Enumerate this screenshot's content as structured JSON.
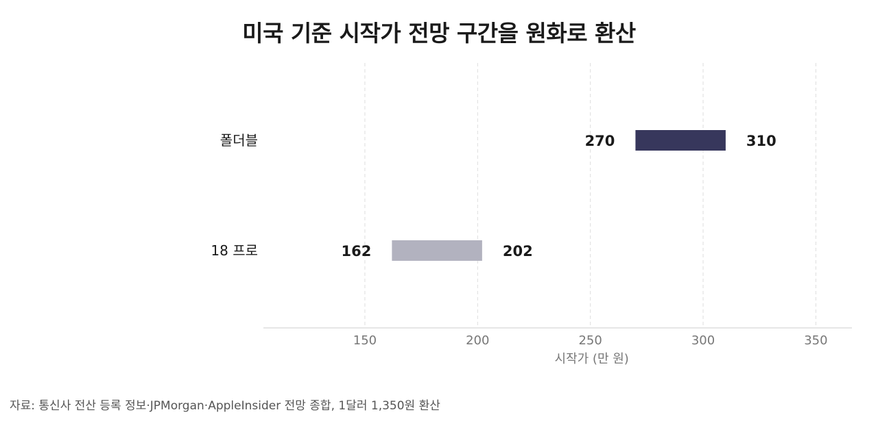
{
  "chart_data": {
    "type": "bar",
    "orientation": "horizontal",
    "subtype": "range",
    "title": "미국 기준 시작가 전망 구간을 원화로 환산",
    "xlabel": "시작가 (만 원)",
    "ylabel": "",
    "xlim": [
      105,
      366
    ],
    "xticks": [
      150,
      200,
      250,
      300,
      350
    ],
    "grid": "vertical dashed",
    "categories": [
      "폴더블",
      "18 프로"
    ],
    "series": [
      {
        "ranges": [
          [
            270,
            310
          ],
          [
            162,
            202
          ]
        ],
        "colors": [
          "#37375c",
          "#b2b2bf"
        ]
      }
    ],
    "range_labels": [
      [
        "270",
        "310"
      ],
      [
        "162",
        "202"
      ]
    ]
  },
  "source": "자료: 통신사 전산 등록 정보·JPMorgan·AppleInsider 전망 종합, 1달러 1,350원 환산",
  "colors": {
    "grid": "#dddddd",
    "axis": "#cccccc",
    "tick_text": "#777777",
    "label_text": "#1a1a1a"
  }
}
